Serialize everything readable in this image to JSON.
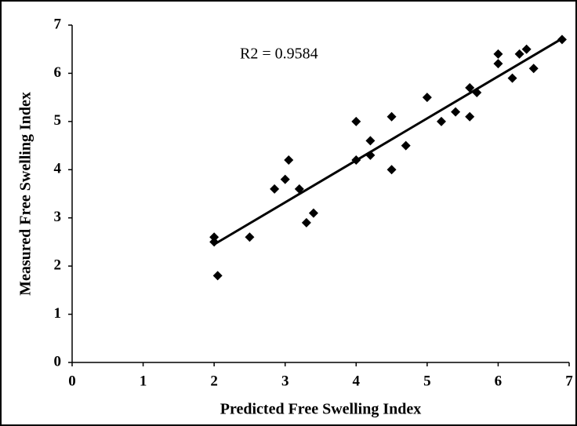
{
  "chart_data": {
    "type": "scatter",
    "xlabel": "Predicted Free Swelling Index",
    "ylabel": "Measured Free Swelling Index",
    "annotation": "R2 = 0.9584",
    "color": "#000000",
    "x": [
      2.0,
      2.0,
      2.05,
      2.5,
      2.85,
      3.0,
      3.05,
      3.2,
      3.3,
      3.4,
      4.0,
      4.0,
      4.2,
      4.2,
      4.5,
      4.5,
      4.7,
      5.0,
      5.2,
      5.4,
      5.6,
      5.6,
      5.7,
      6.0,
      6.0,
      6.2,
      6.3,
      6.4,
      6.5,
      6.9
    ],
    "y": [
      2.6,
      2.5,
      1.8,
      2.6,
      3.6,
      3.8,
      4.2,
      3.6,
      2.9,
      3.1,
      5.0,
      4.2,
      4.6,
      4.3,
      5.1,
      4.0,
      4.5,
      5.5,
      5.0,
      5.2,
      5.7,
      5.1,
      5.6,
      6.4,
      6.2,
      5.9,
      6.4,
      6.5,
      6.1,
      6.7
    ],
    "trendline": {
      "x": [
        2.0,
        6.9
      ],
      "y": [
        2.45,
        6.72
      ]
    },
    "xlim": [
      0,
      7
    ],
    "ylim": [
      0,
      7
    ],
    "xticks": [
      0,
      1,
      2,
      3,
      4,
      5,
      6,
      7
    ],
    "yticks": [
      0,
      1,
      2,
      3,
      4,
      5,
      6,
      7
    ]
  }
}
